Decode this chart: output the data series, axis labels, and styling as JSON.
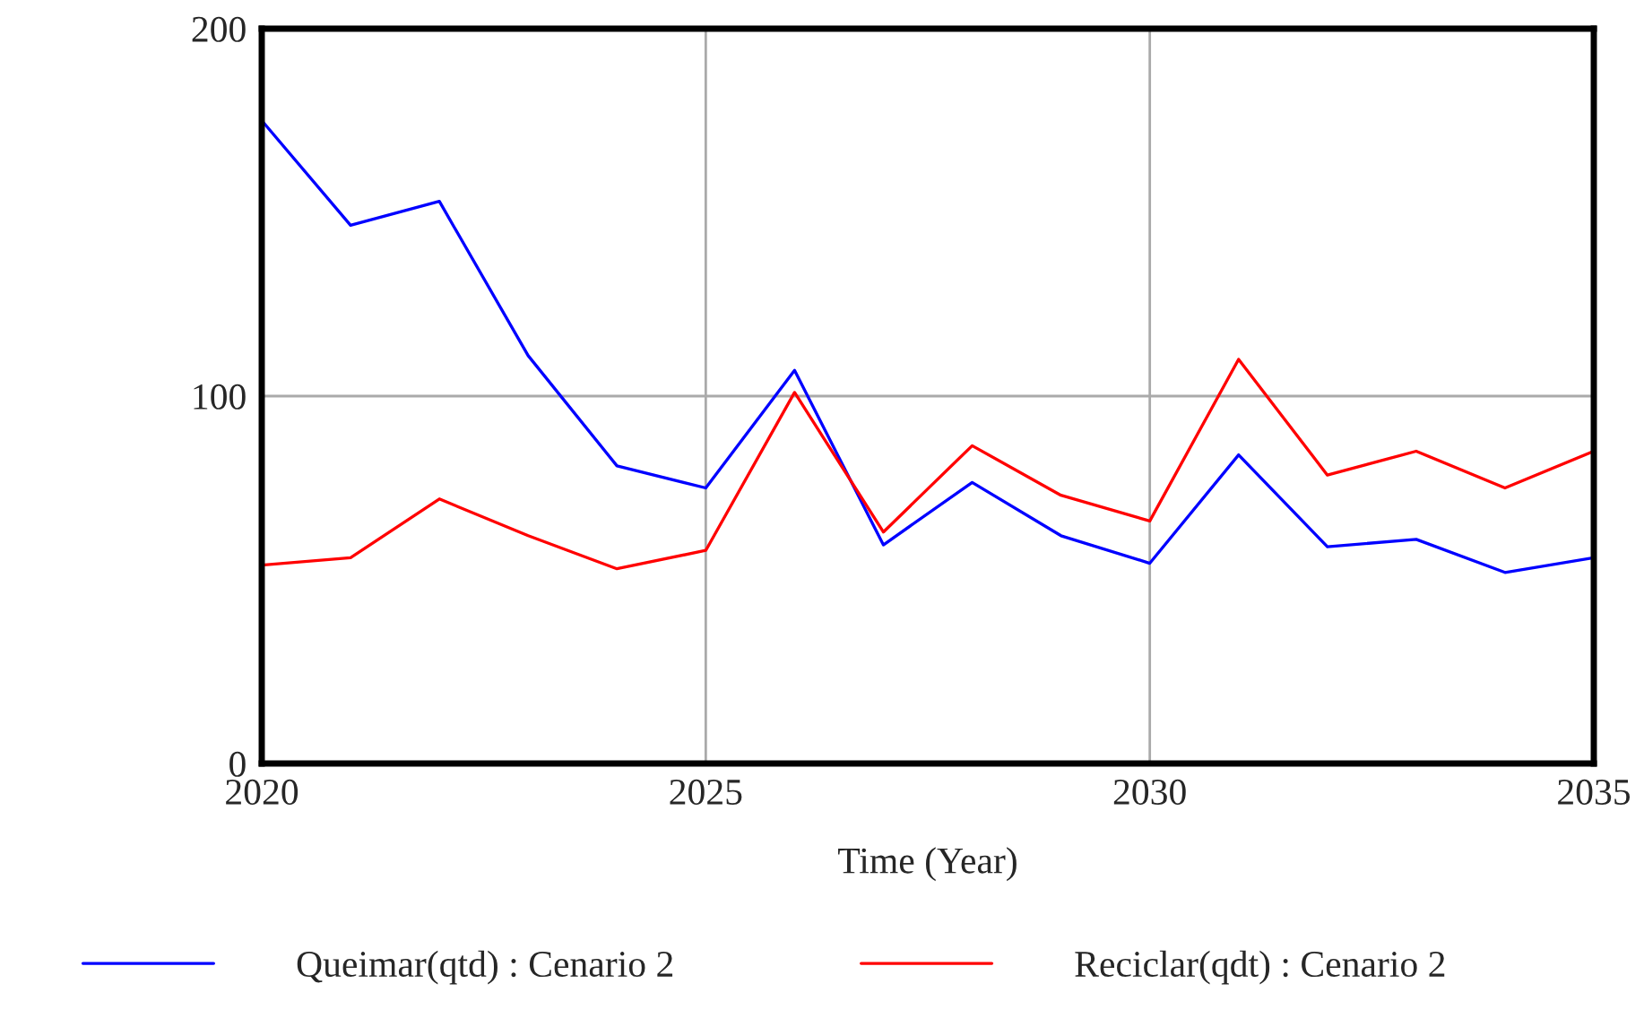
{
  "chart_data": {
    "type": "line",
    "xlabel": "Time (Year)",
    "x": [
      2020,
      2021,
      2022,
      2023,
      2024,
      2025,
      2026,
      2027,
      2028,
      2029,
      2030,
      2031,
      2032,
      2033,
      2034,
      2035
    ],
    "series": [
      {
        "name": "Queimar(qtd) : Cenario 2",
        "color": "#0000ff",
        "values": [
          175,
          146.5,
          153,
          111,
          81,
          75,
          107,
          59.5,
          76.5,
          62,
          54.5,
          84,
          59,
          61,
          52,
          56
        ]
      },
      {
        "name": "Reciclar(qdt) : Cenario 2",
        "color": "#ff0000",
        "values": [
          54,
          56,
          72,
          62,
          53,
          58,
          101,
          63,
          86.5,
          73,
          66,
          110,
          78.5,
          85,
          75,
          85
        ]
      }
    ],
    "xlim": [
      2020,
      2035
    ],
    "xticks": [
      2020,
      2025,
      2030,
      2035
    ],
    "ylim": [
      0,
      200
    ],
    "yticks": [
      0,
      100,
      200
    ],
    "grid": true,
    "legend": "bottom",
    "marker": "none",
    "line_style": "solid"
  }
}
